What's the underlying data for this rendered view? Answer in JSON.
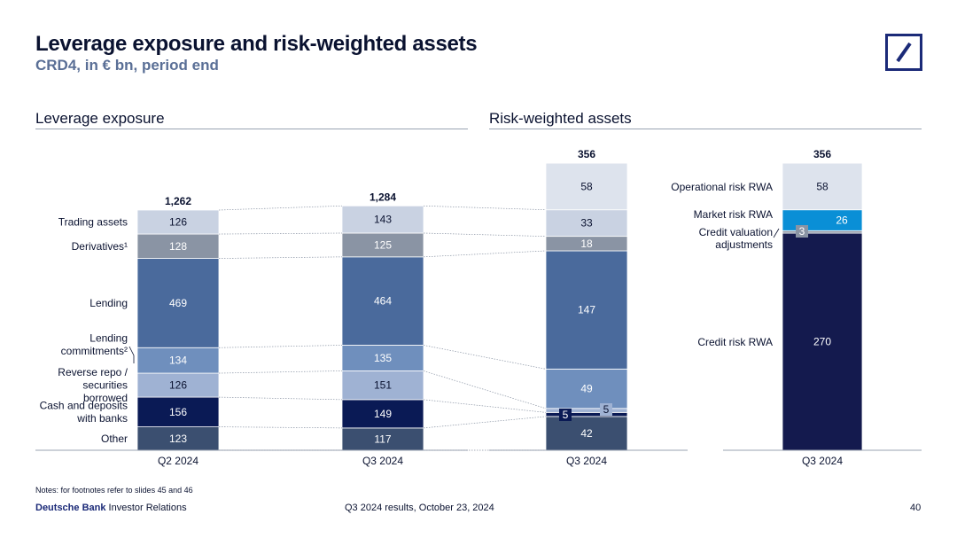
{
  "header": {
    "title": "Leverage exposure and risk-weighted assets",
    "subtitle": "CRD4, in € bn, period end"
  },
  "sections": {
    "leverage_title": "Leverage exposure",
    "rwa_title": "Risk-weighted assets"
  },
  "chart_data": [
    {
      "type": "bar",
      "stacked": true,
      "title": "Leverage exposure",
      "categories": [
        "Q2 2024",
        "Q3 2024"
      ],
      "totals": [
        "1,262",
        "1,284"
      ],
      "series": [
        {
          "name": "Other",
          "values": [
            123,
            117
          ],
          "color": "#3b4f70"
        },
        {
          "name": "Cash and deposits with banks",
          "values": [
            156,
            149
          ],
          "color": "#0a1a55"
        },
        {
          "name": "Reverse repo / securities borrowed",
          "values": [
            126,
            151
          ],
          "color": "#9fb2d3"
        },
        {
          "name": "Lending commitments²",
          "values": [
            134,
            135
          ],
          "color": "#6f8fbd"
        },
        {
          "name": "Lending",
          "values": [
            469,
            464
          ],
          "color": "#4a6a9c"
        },
        {
          "name": "Derivatives¹",
          "values": [
            128,
            125
          ],
          "color": "#8a94a4"
        },
        {
          "name": "Trading assets",
          "values": [
            126,
            143
          ],
          "color": "#c9d2e2"
        }
      ]
    },
    {
      "type": "bar",
      "stacked": true,
      "title": "Risk-weighted assets",
      "categories": [
        "Q3 2024"
      ],
      "total": "356",
      "segments": [
        {
          "value": 42,
          "label": "42",
          "color": "#3b4f70"
        },
        {
          "value": 5,
          "label": "5",
          "color": "#0a1a55"
        },
        {
          "value": 5,
          "label": "5",
          "color": "#9fb2d3"
        },
        {
          "value": 49,
          "label": "49",
          "color": "#6f8fbd"
        },
        {
          "value": 147,
          "label": "147",
          "color": "#4a6a9c"
        },
        {
          "value": 18,
          "label": "18",
          "color": "#8a94a4"
        },
        {
          "value": 33,
          "label": "33",
          "color": "#c9d2e2"
        },
        {
          "value": 58,
          "label": "58",
          "color": "#dde3ed"
        }
      ]
    },
    {
      "type": "bar",
      "stacked": true,
      "title": "Risk-weighted assets",
      "categories": [
        "Q3 2024"
      ],
      "total": "356",
      "series": [
        {
          "name": "Credit risk RWA",
          "value": 270,
          "color": "#141a4e"
        },
        {
          "name": "Credit valuation adjustments",
          "value": 3,
          "color": "#8a94a4"
        },
        {
          "name": "Market risk RWA",
          "value": 26,
          "color": "#0a8fd6"
        },
        {
          "name": "Operational risk RWA",
          "value": 58,
          "color": "#dde3ed"
        }
      ]
    }
  ],
  "footer": {
    "notes": "Notes: for footnotes refer to slides 45 and 46",
    "brand_bold": "Deutsche Bank",
    "brand_rest": " Investor Relations",
    "event": "Q3 2024 results, October 23, 2024",
    "page": "40"
  }
}
